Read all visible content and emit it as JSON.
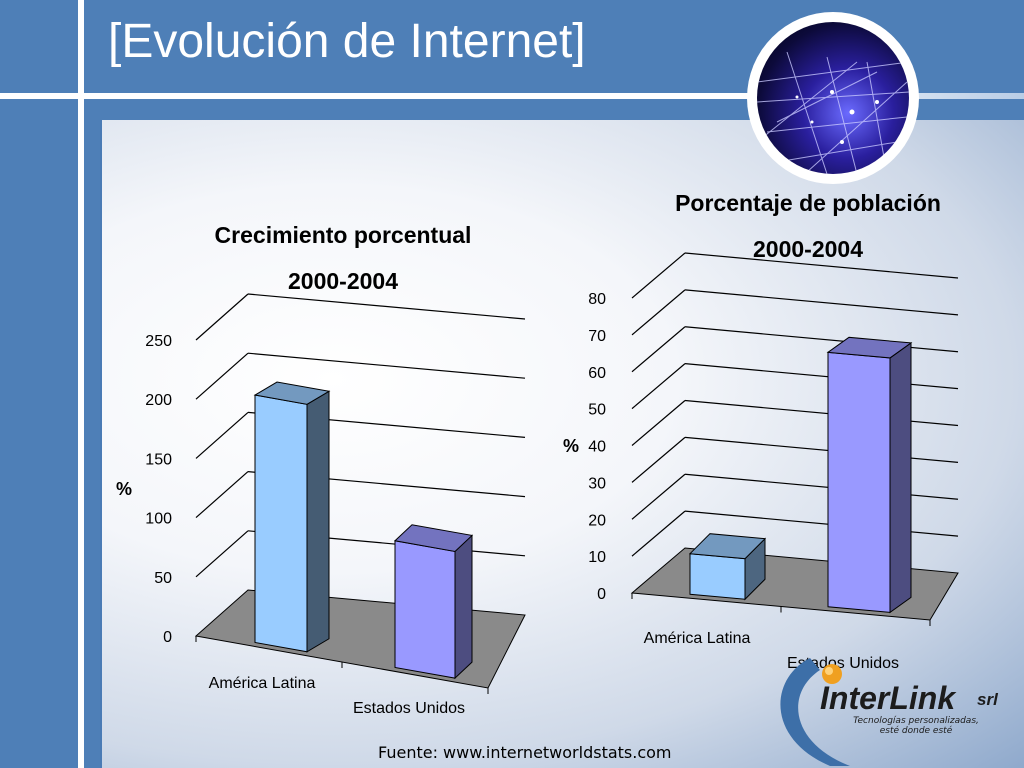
{
  "slide": {
    "title": "[Evolución de Internet]",
    "source": "Fuente: www.internetworldstats.com",
    "logo": {
      "name": "InterLink",
      "suffix": "srl",
      "tagline_1": "Tecnologías personalizadas,",
      "tagline_2": "esté donde esté"
    }
  },
  "chart_data": [
    {
      "type": "bar",
      "title": "Crecimiento porcentual",
      "subtitle": "2000-2004",
      "ylabel": "%",
      "xlabel": "",
      "categories": [
        "América Latina",
        "Estados Unidos"
      ],
      "values": [
        209,
        107
      ],
      "ylim": [
        0,
        250
      ],
      "yticks": [
        0,
        50,
        100,
        150,
        200,
        250
      ],
      "grid": true,
      "style": "3d-column",
      "colors": [
        "#99ccff",
        "#9999ff"
      ]
    },
    {
      "type": "bar",
      "title": "Porcentaje de población",
      "subtitle": "2000-2004",
      "ylabel": "%",
      "xlabel": "",
      "categories": [
        "América Latina",
        "Estados Unidos"
      ],
      "values": [
        11,
        69
      ],
      "ylim": [
        0,
        80
      ],
      "yticks": [
        0,
        10,
        20,
        30,
        40,
        50,
        60,
        70,
        80
      ],
      "grid": true,
      "style": "3d-column",
      "colors": [
        "#99ccff",
        "#9999ff"
      ]
    }
  ]
}
